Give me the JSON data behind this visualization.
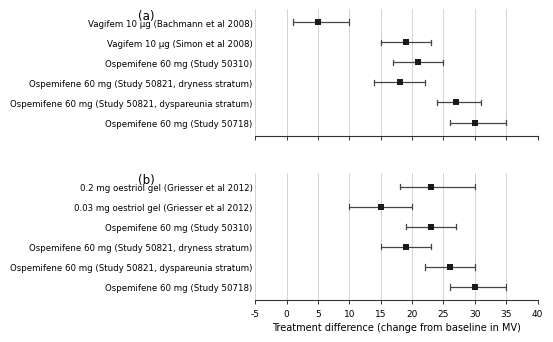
{
  "panel_a": {
    "labels": [
      "Vagifem 10 μg (Bachmann et al 2008)",
      "Vagifem 10 μg (Simon et al 2008)",
      "Ospemifene 60 mg (Study 50310)",
      "Ospemifene 60 mg (Study 50821, dryness stratum)",
      "Ospemifene 60 mg (Study 50821, dyspareunia stratum)",
      "Ospemifene 60 mg (Study 50718)"
    ],
    "means": [
      5,
      19,
      21,
      18,
      27,
      30
    ],
    "ci_low": [
      1,
      15,
      17,
      14,
      24,
      26
    ],
    "ci_high": [
      10,
      23,
      25,
      22,
      31,
      35
    ],
    "label": "(a)"
  },
  "panel_b": {
    "labels": [
      "0.2 mg oestriol gel (Griesser et al 2012)",
      "0.03 mg oestriol gel (Griesser et al 2012)",
      "Ospemifene 60 mg (Study 50310)",
      "Ospemifene 60 mg (Study 50821, dryness stratum)",
      "Ospemifene 60 mg (Study 50821, dyspareunia stratum)",
      "Ospemifene 60 mg (Study 50718)"
    ],
    "means": [
      23,
      15,
      23,
      19,
      26,
      30
    ],
    "ci_low": [
      18,
      10,
      19,
      15,
      22,
      26
    ],
    "ci_high": [
      30,
      20,
      27,
      23,
      30,
      35
    ],
    "label": "(b)"
  },
  "xlim": [
    -5,
    40
  ],
  "xticks": [
    -5,
    0,
    5,
    10,
    15,
    20,
    25,
    30,
    35,
    40
  ],
  "xlabel": "Treatment difference (change from baseline in MV)",
  "grid_color": "#cccccc",
  "marker_color": "#1a1a1a",
  "line_color": "#444444",
  "text_color": "#000000",
  "bg_color": "#ffffff",
  "fontsize_labels": 6.2,
  "fontsize_ticks": 6.5,
  "fontsize_xlabel": 7.0,
  "fontsize_panel_label": 8.5
}
